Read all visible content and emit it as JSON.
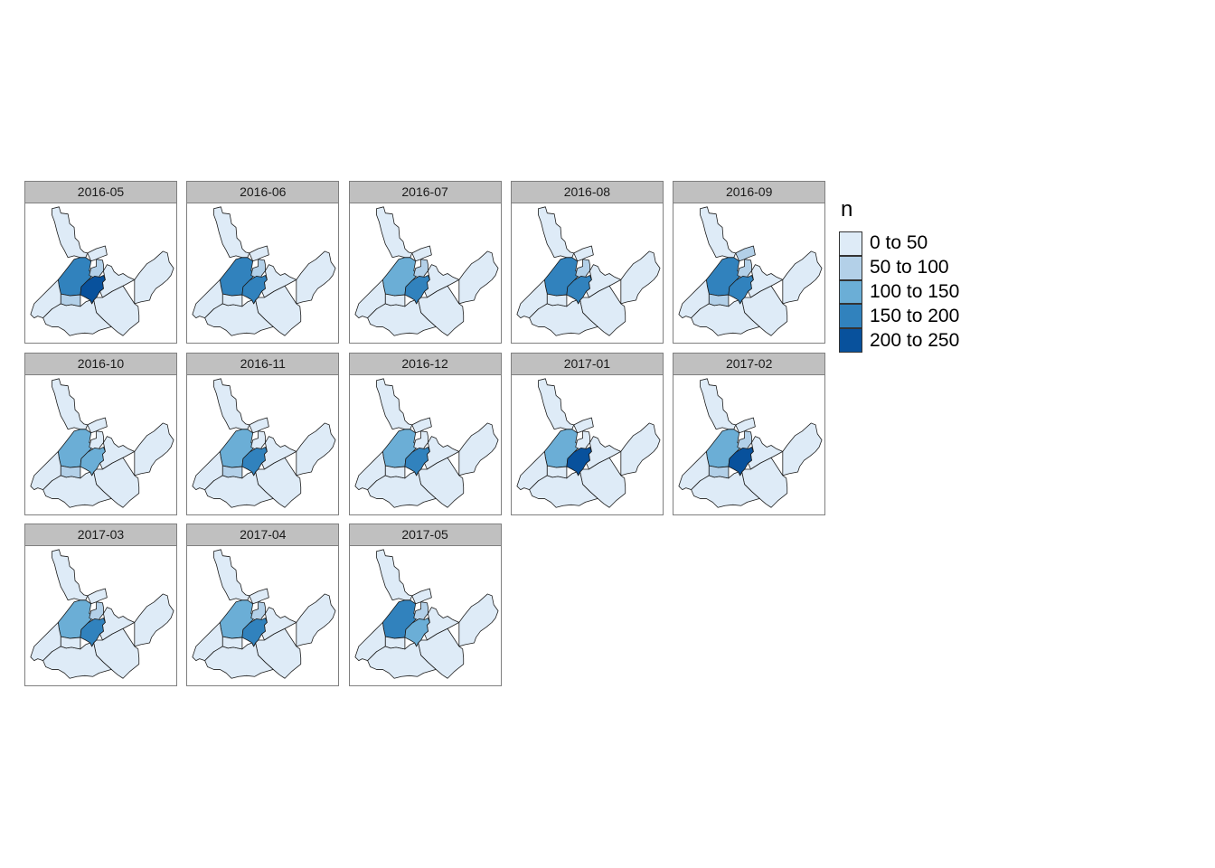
{
  "legend": {
    "title": "n",
    "classes": [
      {
        "label": "0 to 50",
        "color": "#deebf7"
      },
      {
        "label": "50 to 100",
        "color": "#b3d0e8"
      },
      {
        "label": "100 to 150",
        "color": "#6baed6"
      },
      {
        "label": "150 to 200",
        "color": "#3182bd"
      },
      {
        "label": "200 to 250",
        "color": "#08519c"
      }
    ]
  },
  "panels": [
    {
      "title": "2016-05",
      "classes": {
        "north_center": 3,
        "north_small": 1,
        "center": 4,
        "southwest_center": 1,
        "northeast": 0
      }
    },
    {
      "title": "2016-06",
      "classes": {
        "north_center": 3,
        "north_small": 1,
        "center": 3,
        "southwest_center": 0,
        "northeast": 0
      }
    },
    {
      "title": "2016-07",
      "classes": {
        "north_center": 2,
        "north_small": 1,
        "center": 3,
        "southwest_center": 0,
        "northeast": 0
      }
    },
    {
      "title": "2016-08",
      "classes": {
        "north_center": 3,
        "north_small": 1,
        "center": 3,
        "southwest_center": 0,
        "northeast": 0
      }
    },
    {
      "title": "2016-09",
      "classes": {
        "north_center": 3,
        "north_small": 1,
        "center": 3,
        "southwest_center": 1,
        "northeast": 1
      }
    },
    {
      "title": "2016-10",
      "classes": {
        "north_center": 2,
        "north_small": 0,
        "center": 2,
        "southwest_center": 1,
        "northeast": 0
      }
    },
    {
      "title": "2016-11",
      "classes": {
        "north_center": 2,
        "north_small": 0,
        "center": 3,
        "southwest_center": 1,
        "northeast": 0
      }
    },
    {
      "title": "2016-12",
      "classes": {
        "north_center": 2,
        "north_small": 0,
        "center": 3,
        "southwest_center": 0,
        "northeast": 0
      }
    },
    {
      "title": "2017-01",
      "classes": {
        "north_center": 2,
        "north_small": 0,
        "center": 4,
        "southwest_center": 0,
        "northeast": 0
      }
    },
    {
      "title": "2017-02",
      "classes": {
        "north_center": 2,
        "north_small": 1,
        "center": 4,
        "southwest_center": 1,
        "northeast": 0
      }
    },
    {
      "title": "2017-03",
      "classes": {
        "north_center": 2,
        "north_small": 1,
        "center": 3,
        "southwest_center": 0,
        "northeast": 0
      }
    },
    {
      "title": "2017-04",
      "classes": {
        "north_center": 2,
        "north_small": 1,
        "center": 3,
        "southwest_center": 0,
        "northeast": 0
      }
    },
    {
      "title": "2017-05",
      "classes": {
        "north_center": 3,
        "north_small": 1,
        "center": 2,
        "southwest_center": 0,
        "northeast": 0
      }
    }
  ]
}
